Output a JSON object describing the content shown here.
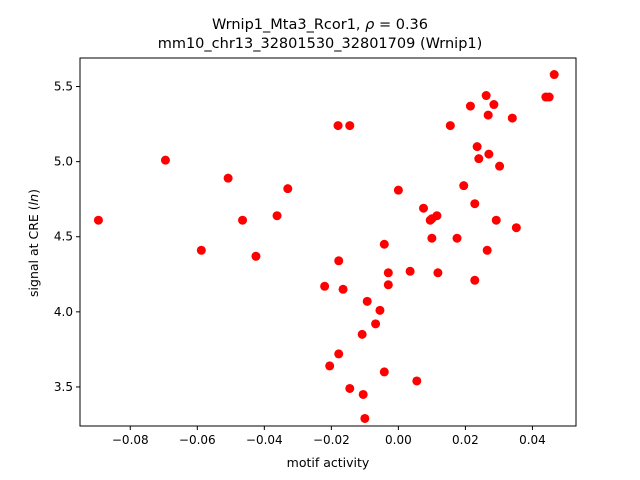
{
  "chart_data": {
    "type": "scatter",
    "title": "Wrnip1_Mta3_Rcor1, ρ = 0.36",
    "subtitle": "mm10_chr13_32801530_32801709 (Wrnip1)",
    "xlabel": "motif activity",
    "ylabel": "signal at CRE (ln)",
    "xlim": [
      -0.095,
      0.053
    ],
    "ylim": [
      3.24,
      5.69
    ],
    "xticks": [
      -0.08,
      -0.06,
      -0.04,
      -0.02,
      0.0,
      0.02,
      0.04
    ],
    "xtick_labels": [
      "−0.08",
      "−0.06",
      "−0.04",
      "−0.02",
      "0.00",
      "0.02",
      "0.04"
    ],
    "yticks": [
      3.5,
      4.0,
      4.5,
      5.0,
      5.5
    ],
    "ytick_labels": [
      "3.5",
      "4.0",
      "4.5",
      "5.0",
      "5.5"
    ],
    "grid": false,
    "marker_color": "#ff0000",
    "points": [
      {
        "x": -0.0895,
        "y": 4.61
      },
      {
        "x": -0.0695,
        "y": 5.01
      },
      {
        "x": -0.0588,
        "y": 4.41
      },
      {
        "x": -0.0508,
        "y": 4.89
      },
      {
        "x": -0.0465,
        "y": 4.61
      },
      {
        "x": -0.0425,
        "y": 4.37
      },
      {
        "x": -0.0362,
        "y": 4.64
      },
      {
        "x": -0.033,
        "y": 4.82
      },
      {
        "x": -0.022,
        "y": 4.17
      },
      {
        "x": -0.0205,
        "y": 3.64
      },
      {
        "x": -0.018,
        "y": 5.24
      },
      {
        "x": -0.0178,
        "y": 4.34
      },
      {
        "x": -0.0178,
        "y": 3.72
      },
      {
        "x": -0.0165,
        "y": 4.15
      },
      {
        "x": -0.0145,
        "y": 5.24
      },
      {
        "x": -0.0145,
        "y": 3.49
      },
      {
        "x": -0.0108,
        "y": 3.85
      },
      {
        "x": -0.0105,
        "y": 3.45
      },
      {
        "x": -0.01,
        "y": 3.29
      },
      {
        "x": -0.0093,
        "y": 4.07
      },
      {
        "x": -0.0068,
        "y": 3.92
      },
      {
        "x": -0.0055,
        "y": 4.01
      },
      {
        "x": -0.0042,
        "y": 4.45
      },
      {
        "x": -0.0042,
        "y": 3.6
      },
      {
        "x": -0.003,
        "y": 4.26
      },
      {
        "x": -0.003,
        "y": 4.18
      },
      {
        "x": 0.0,
        "y": 4.81
      },
      {
        "x": 0.0035,
        "y": 4.27
      },
      {
        "x": 0.0055,
        "y": 3.54
      },
      {
        "x": 0.0075,
        "y": 4.69
      },
      {
        "x": 0.0095,
        "y": 4.61
      },
      {
        "x": 0.01,
        "y": 4.62
      },
      {
        "x": 0.01,
        "y": 4.49
      },
      {
        "x": 0.0115,
        "y": 4.64
      },
      {
        "x": 0.0118,
        "y": 4.26
      },
      {
        "x": 0.0155,
        "y": 5.24
      },
      {
        "x": 0.0175,
        "y": 4.49
      },
      {
        "x": 0.0195,
        "y": 4.84
      },
      {
        "x": 0.0215,
        "y": 5.37
      },
      {
        "x": 0.0228,
        "y": 4.72
      },
      {
        "x": 0.0228,
        "y": 4.21
      },
      {
        "x": 0.0235,
        "y": 5.1
      },
      {
        "x": 0.024,
        "y": 5.02
      },
      {
        "x": 0.0262,
        "y": 5.44
      },
      {
        "x": 0.0265,
        "y": 4.41
      },
      {
        "x": 0.0268,
        "y": 5.31
      },
      {
        "x": 0.027,
        "y": 5.05
      },
      {
        "x": 0.0285,
        "y": 5.38
      },
      {
        "x": 0.0292,
        "y": 4.61
      },
      {
        "x": 0.0302,
        "y": 4.97
      },
      {
        "x": 0.034,
        "y": 5.29
      },
      {
        "x": 0.0352,
        "y": 4.56
      },
      {
        "x": 0.044,
        "y": 5.43
      },
      {
        "x": 0.045,
        "y": 5.43
      },
      {
        "x": 0.0465,
        "y": 5.58
      }
    ]
  }
}
